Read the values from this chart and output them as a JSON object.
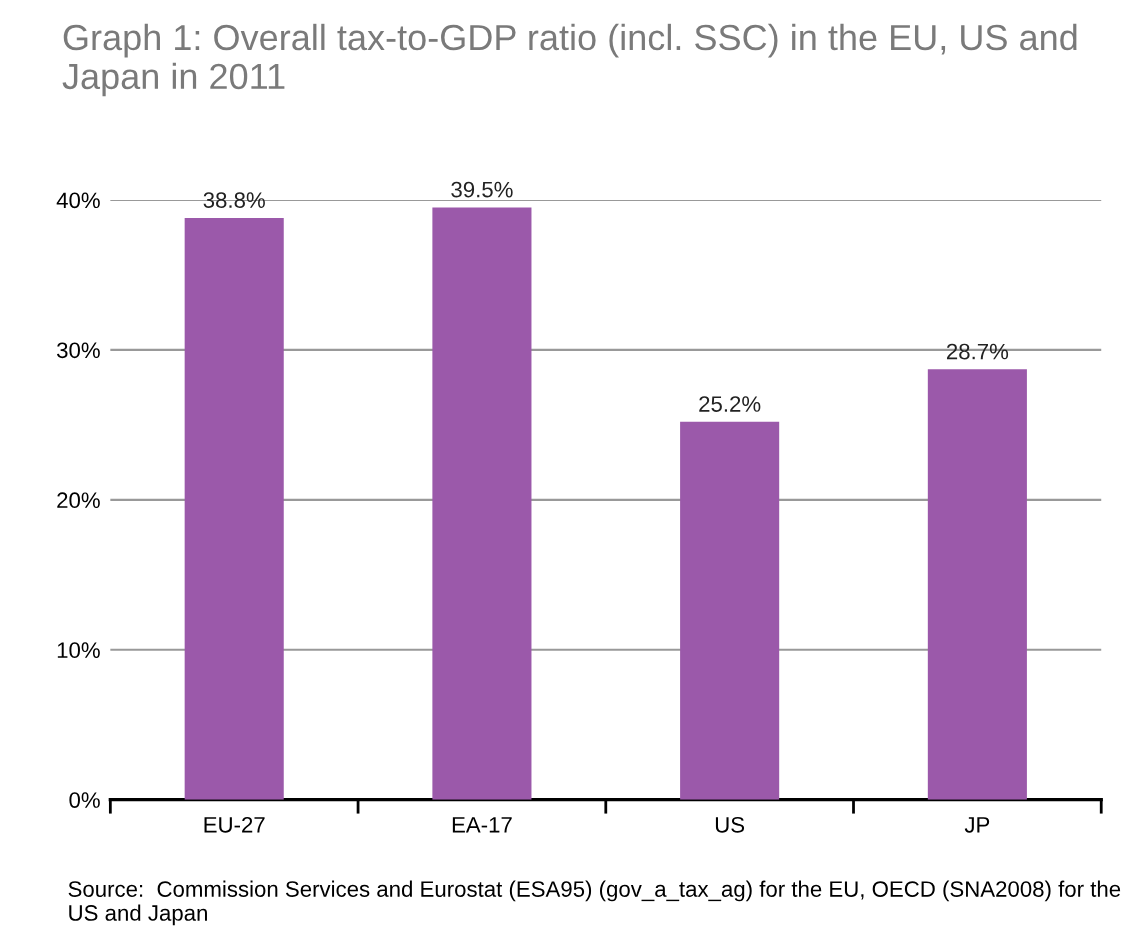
{
  "chart_data": {
    "type": "bar",
    "title": "Graph 1: Overall tax-to-GDP ratio (incl. SSC) in the EU, US and Japan in 2011",
    "categories": [
      "EU-27",
      "EA-17",
      "US",
      "JP"
    ],
    "values": [
      38.8,
      39.5,
      25.2,
      28.7
    ],
    "color": "#9b59aa",
    "value_labels": [
      "38.8%",
      "39.5%",
      "25.2%",
      "28.7%"
    ],
    "ylim": [
      0,
      40
    ],
    "yticks": [
      {
        "value": 0,
        "label": "0%"
      },
      {
        "value": 10,
        "label": "10%"
      },
      {
        "value": 20,
        "label": "20%"
      },
      {
        "value": 30,
        "label": "30%"
      },
      {
        "value": 40,
        "label": "40%"
      }
    ],
    "grid": "y",
    "legend": false,
    "annotations": [
      "Source:  Commission Services and Eurostat (ESA95) (gov_a_tax_ag) for the EU, OECD (SNA2008) for the US and Japan"
    ]
  }
}
